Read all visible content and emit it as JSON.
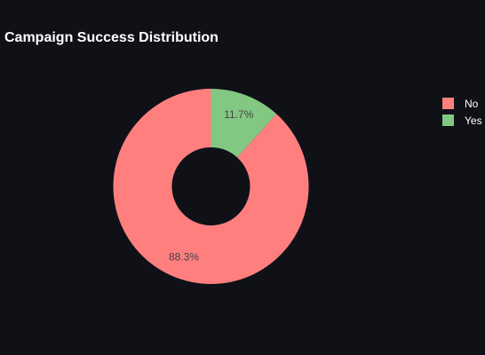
{
  "chart_data": {
    "type": "pie",
    "title": "Campaign Success Distribution",
    "hole": 0.4,
    "start_angle_deg": 90,
    "direction": "clockwise",
    "slices": [
      {
        "label": "Yes",
        "value": 11.7,
        "text": "11.7%",
        "color": "#82c882"
      },
      {
        "label": "No",
        "value": 88.3,
        "text": "88.3%",
        "color": "#ff7f7f"
      }
    ],
    "legend": {
      "placement": "top-right",
      "items": [
        {
          "label": "No",
          "color": "#ff7f7f"
        },
        {
          "label": "Yes",
          "color": "#82c882"
        }
      ]
    },
    "colors": {
      "background": "#0f1117",
      "title": "#ffffff",
      "slice_text": "#444444",
      "legend_text": "#ffffff"
    }
  }
}
